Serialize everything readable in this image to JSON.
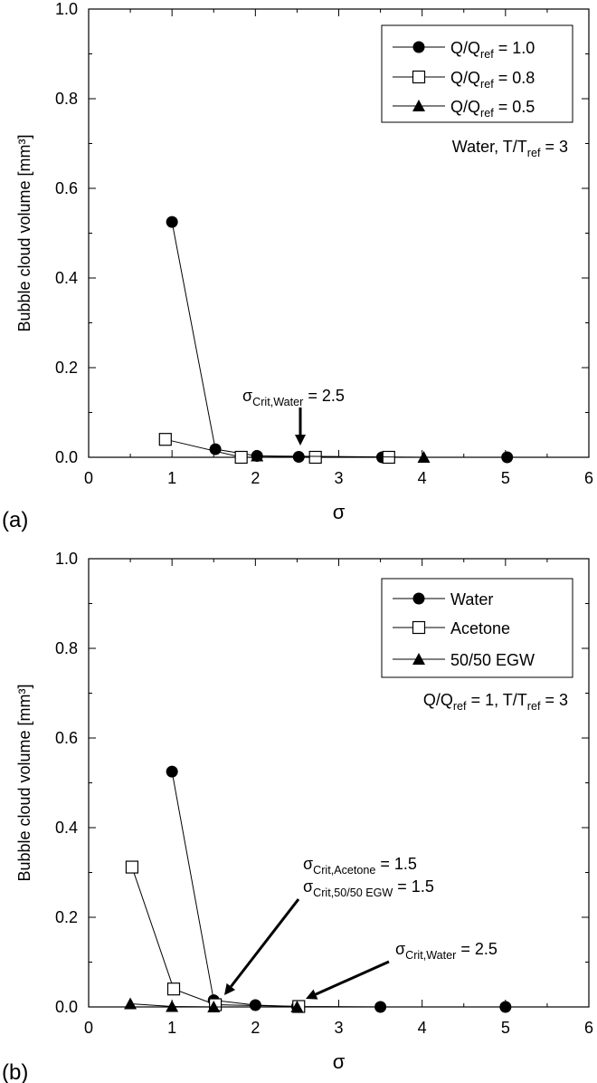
{
  "chart_data": [
    {
      "type": "scatter",
      "panel_label": "(a)",
      "xlabel": "σ",
      "ylabel": "Bubble cloud volume  [mm³]",
      "xlim": [
        0,
        6
      ],
      "ylim": [
        0,
        1.0
      ],
      "x_ticks": [
        "0",
        "1",
        "2",
        "3",
        "4",
        "5",
        "6"
      ],
      "y_ticks": [
        "0.0",
        "0.2",
        "0.4",
        "0.6",
        "0.8",
        "1.0"
      ],
      "grid": false,
      "legend_position": "top-right",
      "series": [
        {
          "name": "Q/Qref = 1.0",
          "marker": "filled-circle",
          "x": [
            1.0,
            1.52,
            2.02,
            2.52,
            3.52,
            5.02
          ],
          "y": [
            0.525,
            0.018,
            0.003,
            0.001,
            0.0,
            0.0
          ]
        },
        {
          "name": "Q/Qref = 0.8",
          "marker": "open-square",
          "x": [
            0.92,
            1.83,
            2.72,
            3.6
          ],
          "y": [
            0.04,
            0.0,
            0.0,
            0.0
          ]
        },
        {
          "name": "Q/Qref = 0.5",
          "marker": "filled-triangle",
          "x": [
            2.02,
            4.02
          ],
          "y": [
            0.003,
            0.0
          ]
        }
      ],
      "annotations": [
        {
          "text": "Water, T/Tref = 3"
        },
        {
          "text": "σCrit,Water = 2.5",
          "arrow_to": [
            2.52,
            0.025
          ]
        }
      ]
    },
    {
      "type": "scatter",
      "panel_label": "(b)",
      "xlabel": "σ",
      "ylabel": "Bubble cloud volume  [mm³]",
      "xlim": [
        0,
        6
      ],
      "ylim": [
        0,
        1.0
      ],
      "x_ticks": [
        "0",
        "1",
        "2",
        "3",
        "4",
        "5",
        "6"
      ],
      "y_ticks": [
        "0.0",
        "0.2",
        "0.4",
        "0.6",
        "0.8",
        "1.0"
      ],
      "grid": false,
      "legend_position": "top-right",
      "series": [
        {
          "name": "Water",
          "marker": "filled-circle",
          "x": [
            1.0,
            1.5,
            2.0,
            2.5,
            3.5,
            5.0
          ],
          "y": [
            0.525,
            0.015,
            0.004,
            0.001,
            0.0,
            0.0
          ]
        },
        {
          "name": "Acetone",
          "marker": "open-square",
          "x": [
            0.52,
            1.02,
            1.52,
            2.52
          ],
          "y": [
            0.312,
            0.04,
            0.005,
            0.001
          ]
        },
        {
          "name": "50/50 EGW",
          "marker": "filled-triangle",
          "x": [
            0.5,
            1.0,
            1.5,
            2.5
          ],
          "y": [
            0.007,
            0.001,
            0.0,
            0.0
          ]
        }
      ],
      "annotations": [
        {
          "text": "Q/Qref = 1, T/Tref = 3"
        },
        {
          "text": "σCrit,Acetone = 1.5"
        },
        {
          "text": "σCrit,50/50 EGW = 1.5",
          "arrow_to": [
            1.58,
            0.01
          ]
        },
        {
          "text": "σCrit,Water = 2.5",
          "arrow_to": [
            2.6,
            0.01
          ]
        }
      ]
    }
  ]
}
